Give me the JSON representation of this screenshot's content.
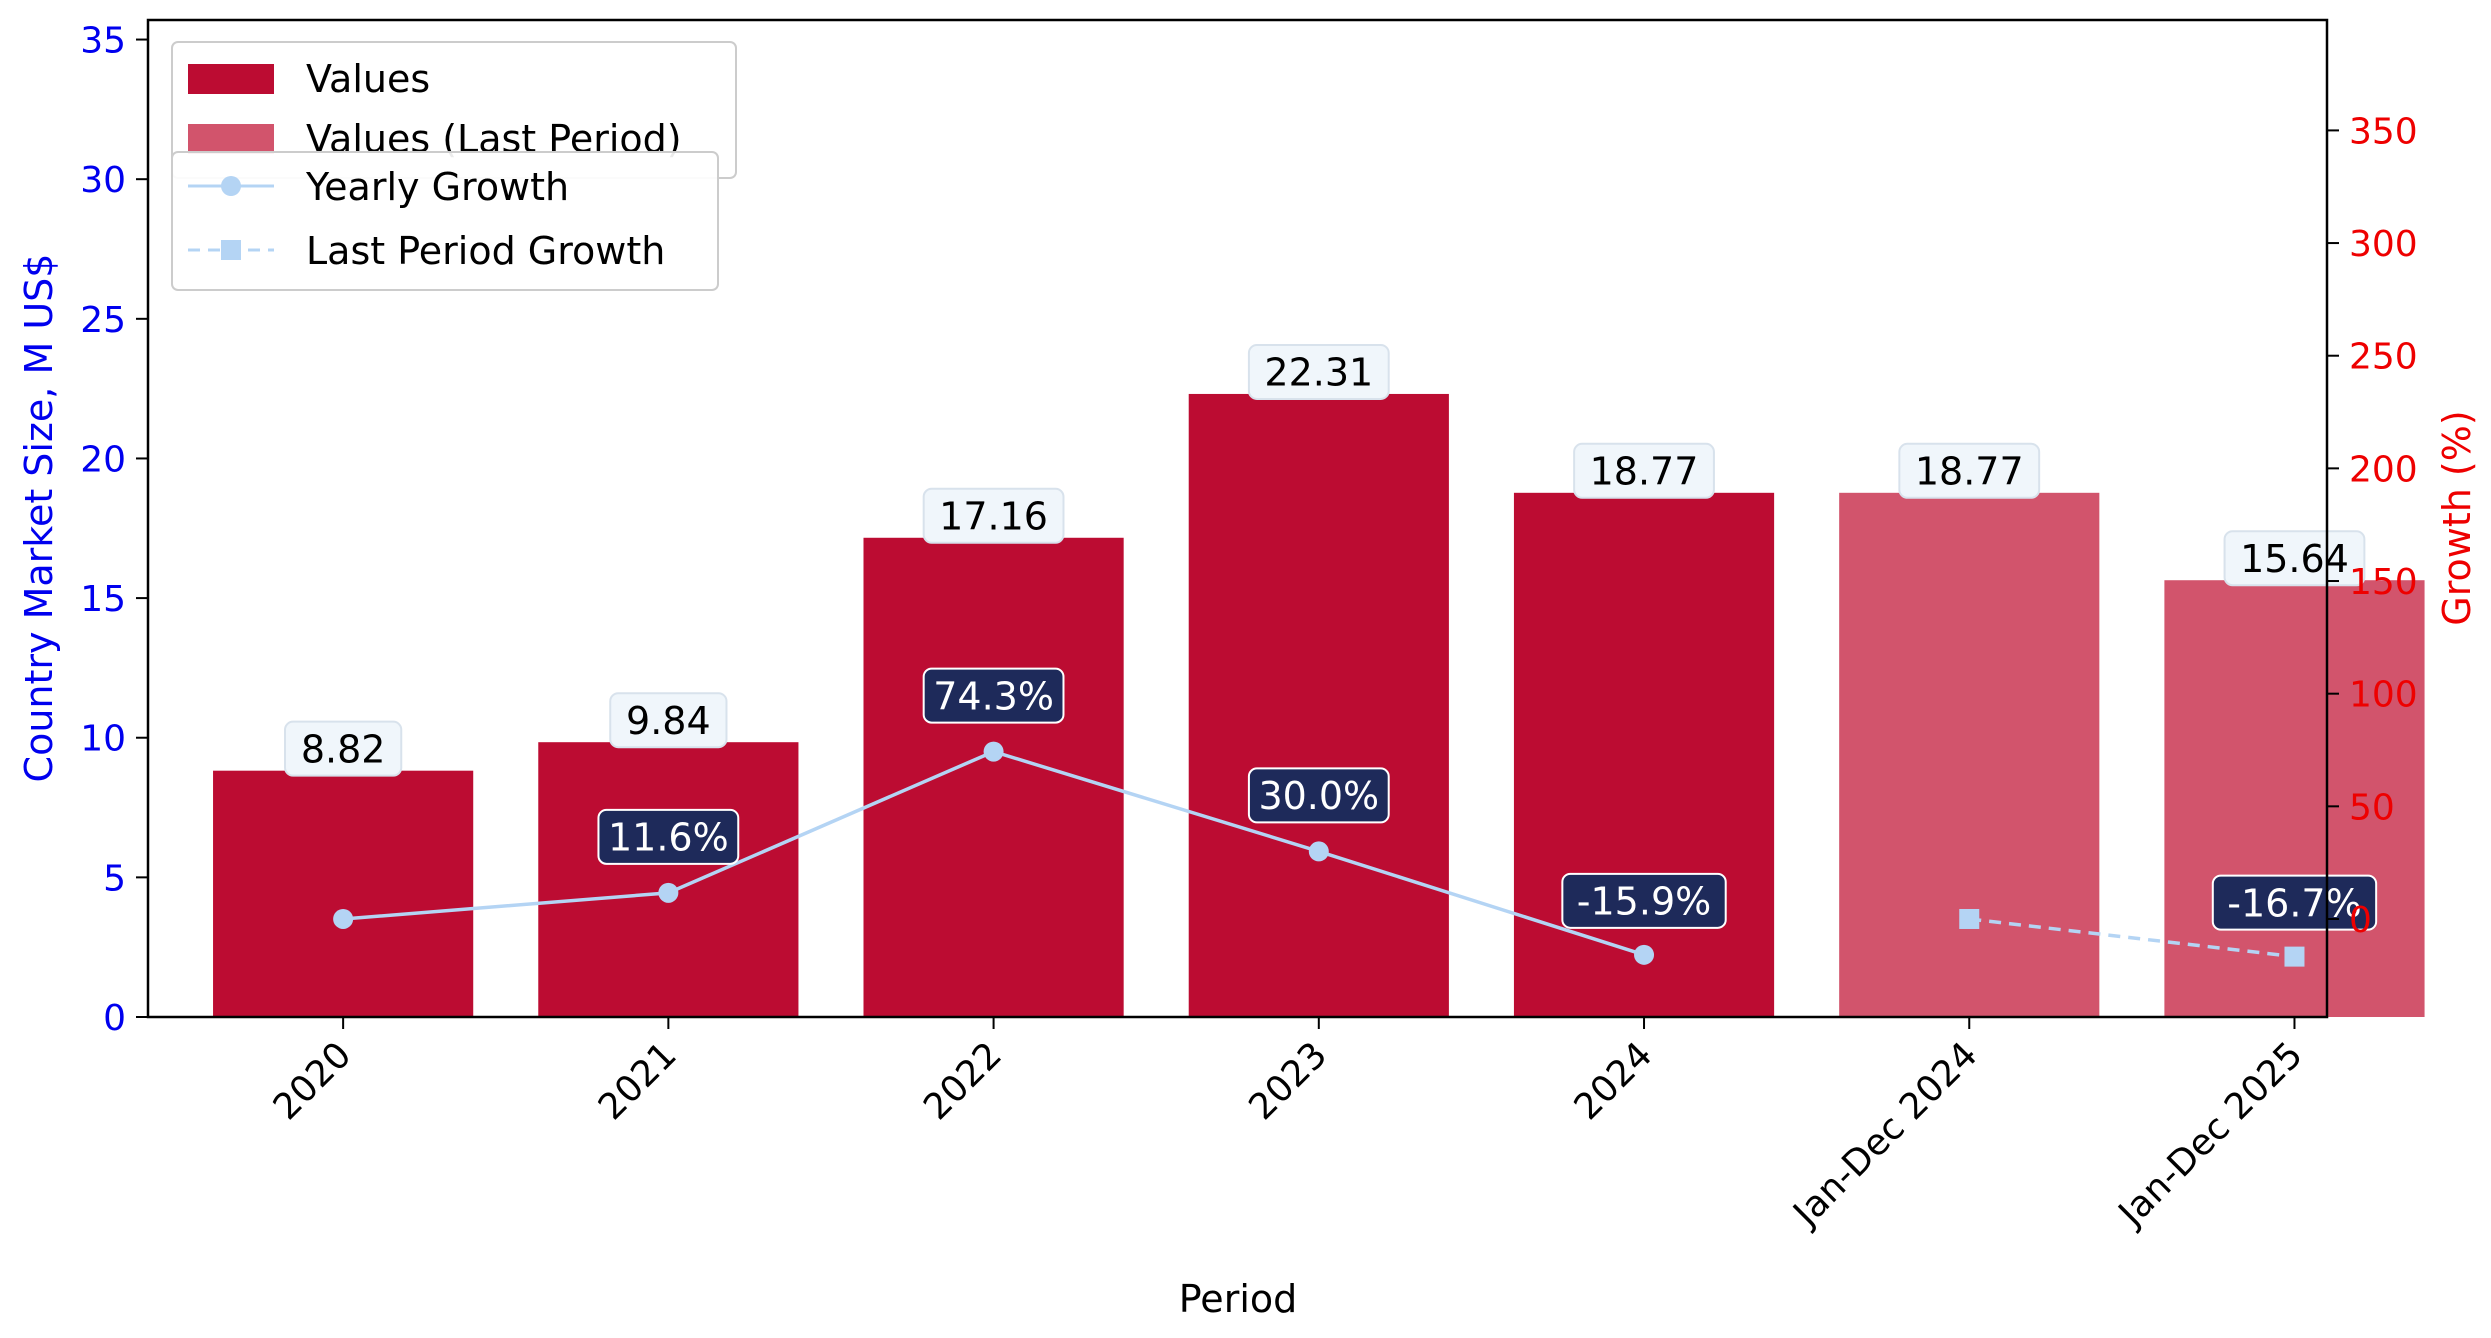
{
  "chart_data": {
    "type": "bar",
    "categories": [
      "2020",
      "2021",
      "2022",
      "2023",
      "2024",
      "Jan-Dec 2024",
      "Jan-Dec 2025"
    ],
    "series": [
      {
        "name": "Values",
        "type": "bar",
        "values": [
          8.82,
          9.84,
          17.16,
          22.31,
          18.77,
          null,
          null
        ],
        "labels": [
          "8.82",
          "9.84",
          "17.16",
          "22.31",
          "18.77",
          null,
          null
        ],
        "color": "#bc0c32"
      },
      {
        "name": "Values (Last Period)",
        "type": "bar",
        "values": [
          null,
          null,
          null,
          null,
          null,
          18.77,
          15.64
        ],
        "labels": [
          null,
          null,
          null,
          null,
          null,
          "18.77",
          "15.64"
        ],
        "color": "#d2546c"
      },
      {
        "name": "Yearly Growth",
        "type": "line",
        "axis": "right",
        "values": [
          0,
          11.6,
          74.3,
          30.0,
          -15.9,
          null,
          null
        ],
        "labels": [
          null,
          "11.6%",
          "74.3%",
          "30.0%",
          "-15.9%",
          null,
          null
        ],
        "color": "#b4d4f4"
      },
      {
        "name": "Last Period Growth",
        "type": "line",
        "axis": "right",
        "dashed": true,
        "values": [
          null,
          null,
          null,
          null,
          null,
          0,
          -16.7
        ],
        "labels": [
          null,
          null,
          null,
          null,
          null,
          null,
          "-16.7%"
        ],
        "color": "#b4d4f4"
      }
    ],
    "xlabel": "Period",
    "ylabel": "Country Market Size, M US$",
    "y2label": "Growth (%)",
    "ylim": [
      0,
      35.7
    ],
    "y2lim": [
      -43.5,
      399
    ],
    "yticks": [
      "0",
      "5",
      "10",
      "15",
      "20",
      "25",
      "30",
      "35"
    ],
    "y2ticks": [
      "0",
      "50",
      "100",
      "150",
      "200",
      "250",
      "300",
      "350"
    ],
    "left_axis_color": "#0000ee",
    "right_axis_color": "#ee0000",
    "growth_label_bg": "#1e2a5a",
    "value_label_bg": "#f0f6fb",
    "grid": false,
    "legend_position": "top-left"
  }
}
